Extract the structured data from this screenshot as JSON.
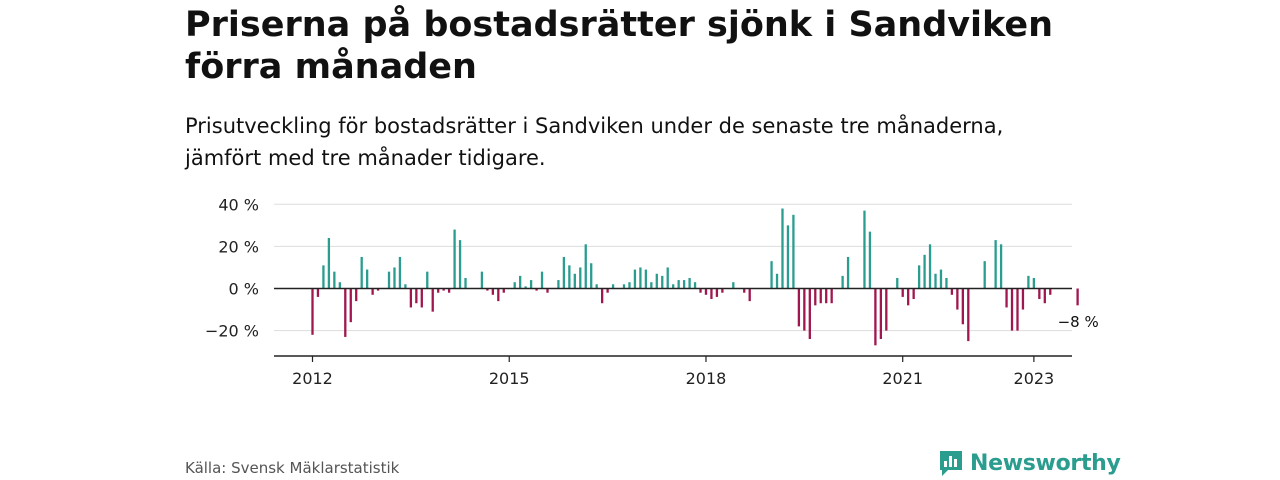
{
  "header": {
    "title": "Priserna på bostadsrätter sjönk i Sandviken förra månaden",
    "subtitle": "Prisutveckling för bostadsrätter i Sandviken under de senaste tre månaderna, jämfört med tre månader tidigare."
  },
  "footer": {
    "source": "Källa: Svensk Mäklarstatistik",
    "brand": "Newsworthy"
  },
  "colors": {
    "positive": "#2a9d8f",
    "negative": "#a0174f",
    "grid": "#dddddd",
    "axis": "#222222"
  },
  "chart_data": {
    "type": "bar",
    "title": "",
    "xlabel": "",
    "ylabel": "",
    "ylim": [
      -33,
      40
    ],
    "yticks": [
      40,
      20,
      0,
      -20
    ],
    "ytick_labels": [
      "40 %",
      "20 %",
      "0 %",
      "−20 %"
    ],
    "xticks": [
      "2012",
      "2015",
      "2018",
      "2021",
      "2023"
    ],
    "grid": true,
    "legend": "none",
    "annotation": "−8 %",
    "series": [
      {
        "values": [
          -22,
          -4,
          11,
          24,
          8,
          3,
          -23,
          -16,
          -6,
          15,
          9,
          -3,
          -1,
          0,
          8,
          10,
          15,
          2,
          -9,
          -7,
          -9,
          8,
          -11,
          -2,
          -1,
          -2,
          28,
          23,
          5,
          0,
          0,
          8,
          -1,
          -3,
          -6,
          -2,
          0,
          3,
          6,
          1,
          4,
          -1,
          8,
          -2,
          0,
          4,
          15,
          11,
          7,
          10,
          21,
          12,
          2,
          -7,
          -2,
          2,
          0,
          2,
          3,
          9,
          10,
          9,
          3,
          7,
          6,
          10,
          2,
          4,
          4,
          5,
          3,
          -2,
          -3,
          -5,
          -4,
          -2,
          0,
          3,
          0,
          -2,
          -6,
          0,
          0,
          0,
          13,
          7,
          38,
          30,
          35,
          -18,
          -20,
          -24,
          -8,
          -7,
          -7,
          -7,
          0,
          6,
          15,
          0,
          0,
          37,
          27,
          -27,
          -24,
          -20,
          0,
          5,
          -4,
          -8,
          -5,
          11,
          16,
          21,
          7,
          9,
          5,
          -3,
          -10,
          -17,
          -25,
          0,
          0,
          13,
          0,
          23,
          21,
          -9,
          -20,
          -20,
          -10,
          6,
          5,
          -5,
          -7,
          -3,
          0,
          0,
          0,
          0,
          -8
        ]
      }
    ]
  }
}
